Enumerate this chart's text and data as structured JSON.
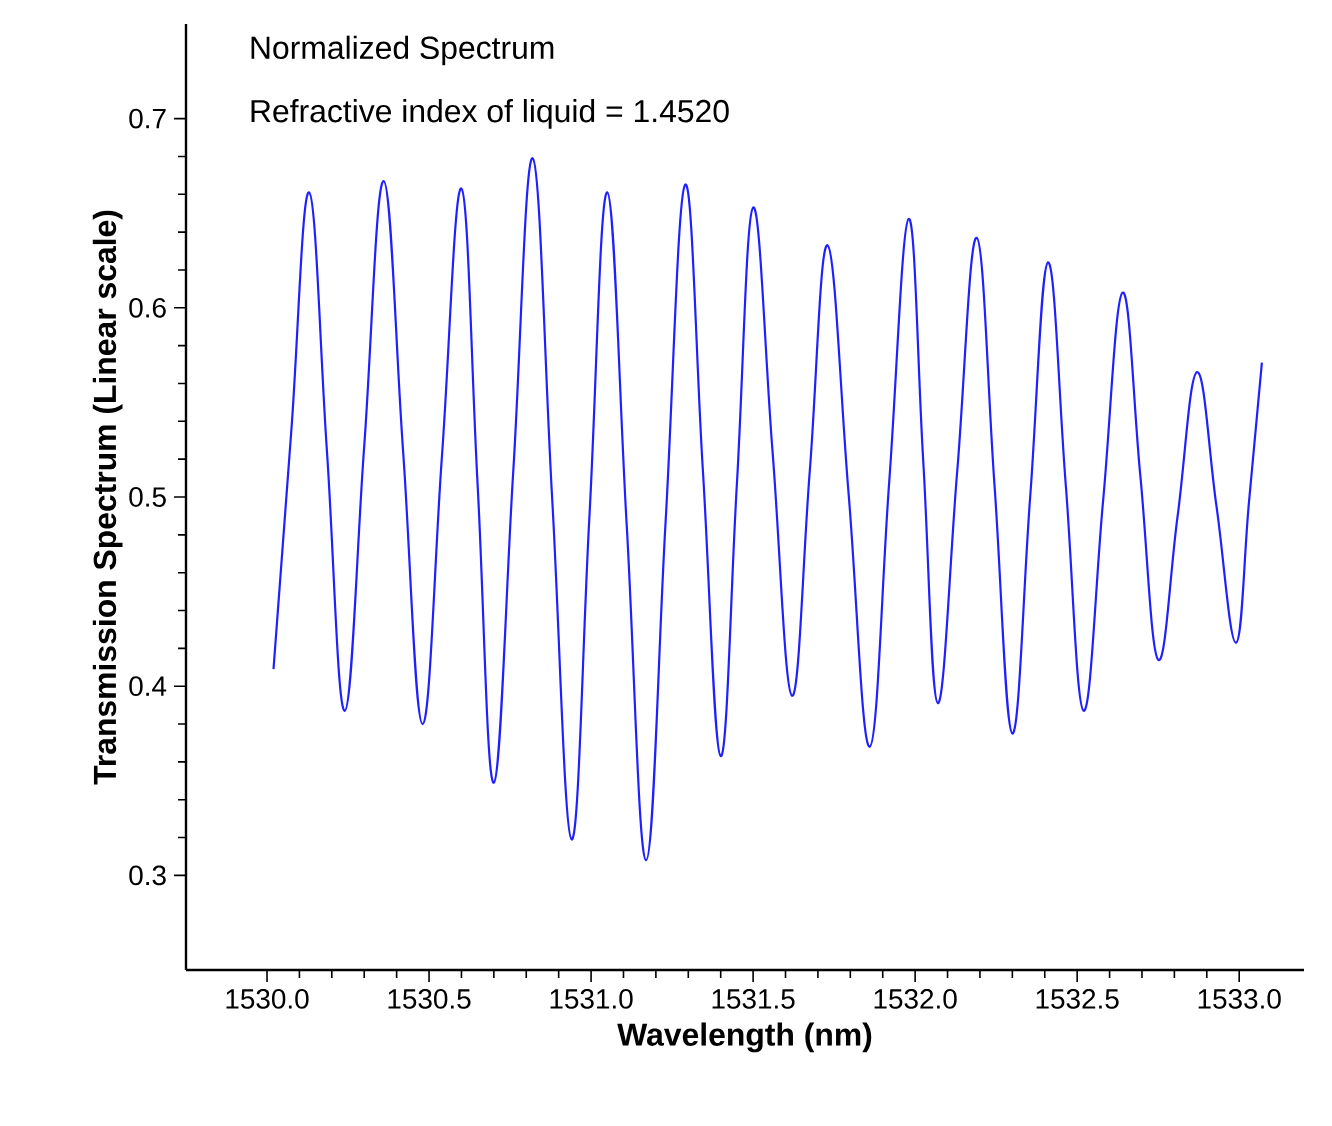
{
  "chart_data": {
    "type": "line",
    "title": "Normalized Spectrum",
    "subtitle": "Refractive index of liquid = 1.4520",
    "xlabel": "Wavelength (nm)",
    "ylabel": "Transmission Spectrum (Linear scale)",
    "x": [
      1530.02,
      1530.075,
      1530.13,
      1530.185,
      1530.24,
      1530.3,
      1530.36,
      1530.42,
      1530.48,
      1530.54,
      1530.6,
      1530.65,
      1530.7,
      1530.76,
      1530.82,
      1530.88,
      1530.94,
      1530.995,
      1531.05,
      1531.11,
      1531.17,
      1531.23,
      1531.29,
      1531.345,
      1531.4,
      1531.45,
      1531.5,
      1531.56,
      1531.62,
      1531.675,
      1531.73,
      1531.795,
      1531.86,
      1531.92,
      1531.98,
      1532.025,
      1532.07,
      1532.13,
      1532.19,
      1532.245,
      1532.3,
      1532.355,
      1532.41,
      1532.465,
      1532.52,
      1532.58,
      1532.64,
      1532.695,
      1532.75,
      1532.81,
      1532.87,
      1532.93,
      1532.99,
      1533.03,
      1533.07
    ],
    "values": [
      0.409,
      0.535,
      0.661,
      0.524,
      0.387,
      0.527,
      0.667,
      0.524,
      0.38,
      0.522,
      0.663,
      0.506,
      0.349,
      0.514,
      0.679,
      0.499,
      0.319,
      0.49,
      0.661,
      0.485,
      0.308,
      0.487,
      0.665,
      0.514,
      0.363,
      0.507,
      0.653,
      0.524,
      0.395,
      0.514,
      0.633,
      0.501,
      0.368,
      0.508,
      0.647,
      0.519,
      0.391,
      0.514,
      0.637,
      0.506,
      0.375,
      0.5,
      0.624,
      0.506,
      0.387,
      0.498,
      0.608,
      0.511,
      0.414,
      0.49,
      0.566,
      0.495,
      0.423,
      0.497,
      0.571
    ],
    "color": "#2020ff",
    "line_style": "solid",
    "xlim": [
      1529.75,
      1533.2
    ],
    "ylim": [
      0.25,
      0.75
    ],
    "xticks": [
      {
        "value": 1530,
        "label": "1530.0"
      },
      {
        "value": 1530.5,
        "label": "1530.5"
      },
      {
        "value": 1531,
        "label": "1531.0"
      },
      {
        "value": 1531.5,
        "label": "1531.5"
      },
      {
        "value": 1532,
        "label": "1532.0"
      },
      {
        "value": 1532.5,
        "label": "1532.5"
      },
      {
        "value": 1533,
        "label": "1533.0"
      }
    ],
    "yticks": [
      0.3,
      0.4,
      0.5,
      0.6,
      0.7
    ]
  }
}
